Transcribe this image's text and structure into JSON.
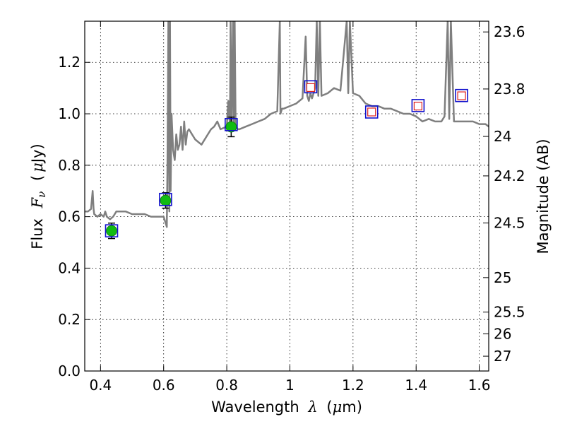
{
  "chart_data": {
    "type": "scatter",
    "xlabel": "Wavelength λ (μm)",
    "xlabel_parts": {
      "pre": "Wavelength",
      "sym": "λ",
      "paren_open": "(",
      "unit_mu": "μ",
      "unit": "m)"
    },
    "ylabel": "Flux F_ν (μJy)",
    "ylabel_parts": {
      "pre": "Flux",
      "sym": "F",
      "sub": "ν",
      "paren_open": "(",
      "unit_mu": "μ",
      "unit": "Jy)"
    },
    "y2label": "Magnitude (AB)",
    "xlim": [
      0.35,
      1.63
    ],
    "ylim": [
      0.0,
      1.36
    ],
    "xticks": [
      0.4,
      0.6,
      0.8,
      1.0,
      1.2,
      1.4,
      1.6
    ],
    "xtick_labels": [
      "0.4",
      "0.6",
      "0.8",
      "1",
      "1.2",
      "1.4",
      "1.6"
    ],
    "yticks": [
      0.0,
      0.2,
      0.4,
      0.6,
      0.8,
      1.0,
      1.2
    ],
    "ytick_labels": [
      "0.0",
      "0.2",
      "0.4",
      "0.6",
      "0.8",
      "1.0",
      "1.2"
    ],
    "y2ticks": [
      {
        "mag": 23.6,
        "label": "23.6"
      },
      {
        "mag": 23.8,
        "label": "23.8"
      },
      {
        "mag": 24.0,
        "label": "24"
      },
      {
        "mag": 24.2,
        "label": "24.2"
      },
      {
        "mag": 24.5,
        "label": "24.5"
      },
      {
        "mag": 25.0,
        "label": "25"
      },
      {
        "mag": 25.5,
        "label": "25.5"
      },
      {
        "mag": 26.0,
        "label": "26"
      },
      {
        "mag": 27.0,
        "label": "27"
      }
    ],
    "grid": true,
    "colors": {
      "spectrum": "#7f7f7f",
      "observed_point": "#11bb11",
      "model_square": "#1111cc",
      "observed_nir_square": "#dd2222",
      "errorbar": "#000000"
    },
    "series": [
      {
        "name": "model spectrum",
        "style": "line",
        "x": [
          0.35,
          0.36,
          0.37,
          0.375,
          0.378,
          0.38,
          0.39,
          0.4,
          0.41,
          0.415,
          0.42,
          0.43,
          0.44,
          0.45,
          0.46,
          0.47,
          0.48,
          0.5,
          0.52,
          0.54,
          0.56,
          0.58,
          0.6,
          0.605,
          0.61,
          0.612,
          0.615,
          0.618,
          0.62,
          0.622,
          0.625,
          0.63,
          0.635,
          0.64,
          0.645,
          0.65,
          0.655,
          0.66,
          0.665,
          0.67,
          0.675,
          0.68,
          0.69,
          0.7,
          0.72,
          0.74,
          0.75,
          0.76,
          0.77,
          0.78,
          0.8,
          0.805,
          0.81,
          0.812,
          0.815,
          0.82,
          0.822,
          0.825,
          0.828,
          0.83,
          0.835,
          0.84,
          0.86,
          0.88,
          0.9,
          0.92,
          0.94,
          0.96,
          0.968,
          0.97,
          0.975,
          0.98,
          1.0,
          1.02,
          1.04,
          1.05,
          1.055,
          1.06,
          1.065,
          1.07,
          1.08,
          1.085,
          1.09,
          1.095,
          1.1,
          1.12,
          1.14,
          1.16,
          1.18,
          1.185,
          1.19,
          1.2,
          1.22,
          1.24,
          1.26,
          1.28,
          1.3,
          1.32,
          1.34,
          1.36,
          1.38,
          1.4,
          1.42,
          1.44,
          1.46,
          1.48,
          1.49,
          1.5,
          1.505,
          1.51,
          1.52,
          1.54,
          1.56,
          1.58,
          1.6,
          1.62,
          1.63
        ],
        "y": [
          0.62,
          0.62,
          0.63,
          0.7,
          0.63,
          0.61,
          0.6,
          0.61,
          0.6,
          0.62,
          0.6,
          0.59,
          0.6,
          0.62,
          0.62,
          0.62,
          0.62,
          0.61,
          0.61,
          0.61,
          0.6,
          0.6,
          0.6,
          0.58,
          0.56,
          0.8,
          1.36,
          0.62,
          1.36,
          0.7,
          1.0,
          0.86,
          0.82,
          0.92,
          0.86,
          0.88,
          0.95,
          0.86,
          0.97,
          0.88,
          0.93,
          0.94,
          0.92,
          0.9,
          0.88,
          0.92,
          0.94,
          0.95,
          0.97,
          0.94,
          0.95,
          1.05,
          0.95,
          1.36,
          0.95,
          1.36,
          0.95,
          1.36,
          0.96,
          0.95,
          0.94,
          0.94,
          0.95,
          0.96,
          0.97,
          0.98,
          1.0,
          1.01,
          1.36,
          1.0,
          1.02,
          1.02,
          1.03,
          1.04,
          1.06,
          1.3,
          1.07,
          1.05,
          1.08,
          1.06,
          1.1,
          1.36,
          1.07,
          1.36,
          1.07,
          1.08,
          1.1,
          1.09,
          1.36,
          1.08,
          1.36,
          1.08,
          1.07,
          1.04,
          1.03,
          1.03,
          1.02,
          1.02,
          1.01,
          1.0,
          1.0,
          0.99,
          0.97,
          0.98,
          0.97,
          0.97,
          0.99,
          1.36,
          0.98,
          1.36,
          0.97,
          0.97,
          0.97,
          0.97,
          0.96,
          0.96,
          0.95
        ]
      },
      {
        "name": "observed photometry",
        "style": "circle-errorbar",
        "x": [
          0.435,
          0.606,
          0.814
        ],
        "y": [
          0.545,
          0.663,
          0.949
        ],
        "yerr": [
          0.03,
          0.03,
          0.038
        ]
      },
      {
        "name": "model photometry",
        "style": "square",
        "x": [
          0.435,
          0.606,
          0.814,
          1.066,
          1.259,
          1.406,
          1.544
        ],
        "y": [
          0.545,
          0.667,
          0.958,
          1.105,
          1.007,
          1.032,
          1.071
        ]
      },
      {
        "name": "NIR photometry",
        "style": "small-square",
        "x": [
          1.066,
          1.259,
          1.406,
          1.544
        ],
        "y": [
          1.102,
          1.007,
          1.03,
          1.07
        ]
      }
    ]
  }
}
